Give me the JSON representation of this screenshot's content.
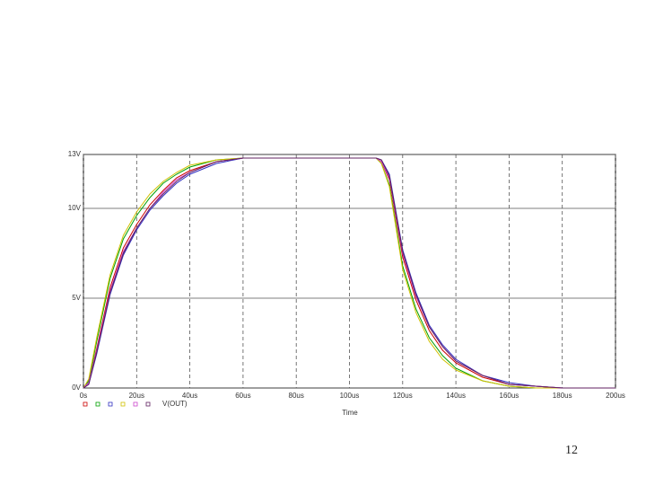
{
  "chart_data": {
    "type": "line",
    "x": [
      0,
      2,
      5,
      10,
      15,
      20,
      25,
      30,
      35,
      40,
      50,
      60,
      80,
      100,
      110,
      112,
      115,
      120,
      125,
      130,
      135,
      140,
      150,
      160,
      170,
      180,
      200
    ],
    "xlim": [
      0,
      200
    ],
    "xticks": [
      {
        "value": 0,
        "label": "0s"
      },
      {
        "value": 20,
        "label": "20us"
      },
      {
        "value": 40,
        "label": "40us"
      },
      {
        "value": 60,
        "label": "60us"
      },
      {
        "value": 80,
        "label": "80us"
      },
      {
        "value": 100,
        "label": "100us"
      },
      {
        "value": 120,
        "label": "120us"
      },
      {
        "value": 140,
        "label": "140us"
      },
      {
        "value": 160,
        "label": "160us"
      },
      {
        "value": 180,
        "label": "180us"
      },
      {
        "value": 200,
        "label": "200us"
      }
    ],
    "ylim": [
      0,
      13
    ],
    "yticks": [
      {
        "value": 0,
        "label": "0V"
      },
      {
        "value": 5,
        "label": "5V"
      },
      {
        "value": 10,
        "label": "10V"
      },
      {
        "value": 13,
        "label": "13V"
      }
    ],
    "xlabel": "Time",
    "legend": "V(OUT)",
    "grid": true,
    "series": [
      {
        "color": "#cc0000",
        "values": [
          0,
          0.3,
          2.2,
          5.6,
          7.8,
          9.1,
          10.2,
          11.0,
          11.7,
          12.1,
          12.6,
          12.8,
          12.8,
          12.8,
          12.8,
          12.6,
          11.6,
          7.3,
          4.9,
          3.2,
          2.1,
          1.4,
          0.6,
          0.2,
          0.1,
          0,
          0
        ]
      },
      {
        "color": "#00a000",
        "values": [
          0,
          0.4,
          2.6,
          6.1,
          8.3,
          9.6,
          10.6,
          11.4,
          11.9,
          12.3,
          12.7,
          12.8,
          12.8,
          12.8,
          12.8,
          12.5,
          11.3,
          6.8,
          4.4,
          2.8,
          1.8,
          1.1,
          0.4,
          0.1,
          0,
          0,
          0
        ]
      },
      {
        "color": "#3030c0",
        "values": [
          0,
          0.2,
          1.9,
          5.2,
          7.4,
          8.8,
          9.9,
          10.7,
          11.4,
          11.9,
          12.5,
          12.8,
          12.8,
          12.8,
          12.8,
          12.7,
          11.9,
          7.7,
          5.3,
          3.5,
          2.4,
          1.6,
          0.7,
          0.3,
          0.1,
          0,
          0
        ]
      },
      {
        "color": "#d0c000",
        "values": [
          0,
          0.5,
          2.8,
          6.3,
          8.5,
          9.8,
          10.8,
          11.5,
          12.0,
          12.4,
          12.7,
          12.8,
          12.8,
          12.8,
          12.8,
          12.5,
          11.2,
          6.6,
          4.2,
          2.6,
          1.6,
          1.0,
          0.4,
          0.1,
          0,
          0,
          0
        ]
      },
      {
        "color": "#cc44cc",
        "values": [
          0,
          0.3,
          2.1,
          5.4,
          7.6,
          8.9,
          10.0,
          10.9,
          11.6,
          12.0,
          12.6,
          12.8,
          12.8,
          12.8,
          12.8,
          12.6,
          11.7,
          7.5,
          5.1,
          3.4,
          2.3,
          1.5,
          0.7,
          0.2,
          0.1,
          0,
          0
        ]
      },
      {
        "color": "#602060",
        "values": [
          0,
          0.2,
          2.0,
          5.3,
          7.5,
          8.9,
          10.0,
          10.8,
          11.5,
          12.0,
          12.6,
          12.8,
          12.8,
          12.8,
          12.8,
          12.7,
          11.8,
          7.6,
          5.2,
          3.4,
          2.3,
          1.5,
          0.7,
          0.2,
          0.1,
          0,
          0
        ]
      }
    ]
  },
  "page_number": "12"
}
